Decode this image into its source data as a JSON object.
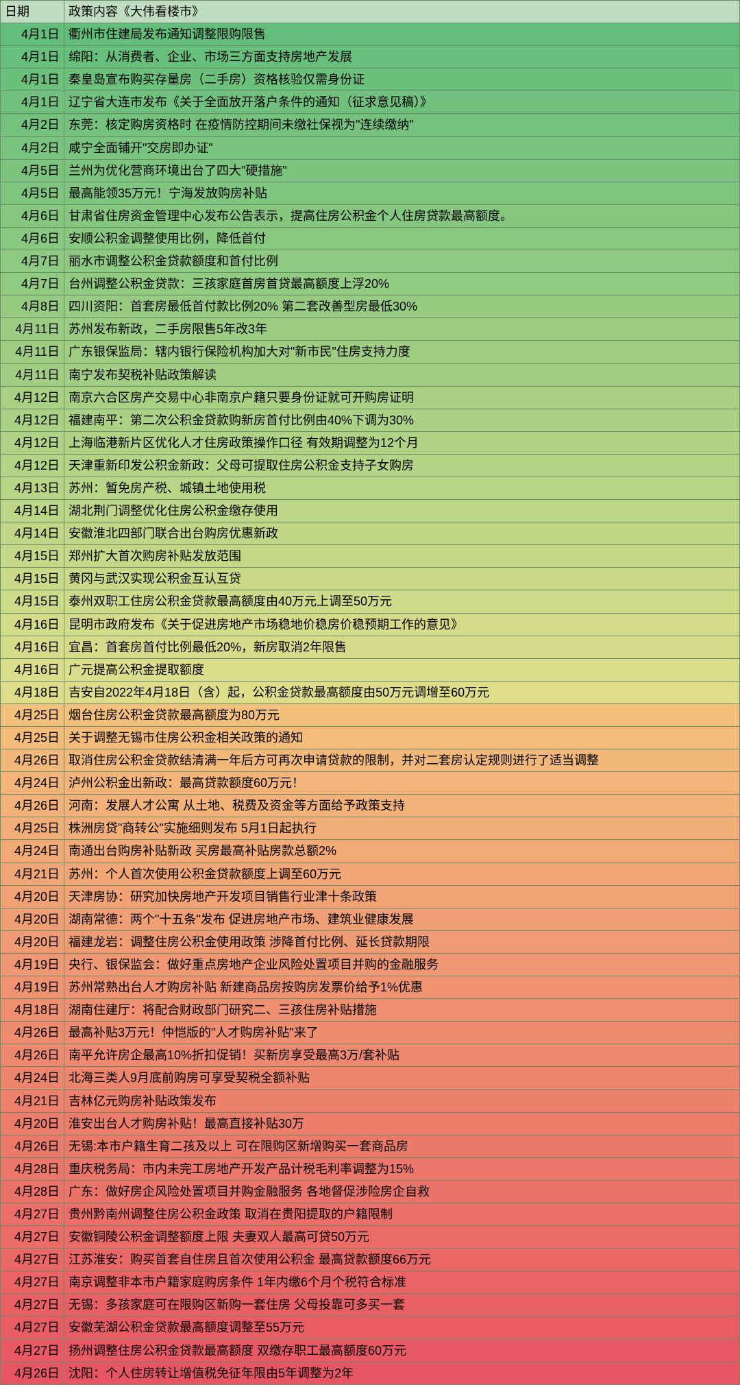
{
  "header": {
    "date": "日期",
    "content": "政策内容《大伟看楼市》"
  },
  "header_bg": "#c0dcc0",
  "border_color": "#6a8a6a",
  "text_color": "#000000",
  "font_size": 18,
  "rows": [
    {
      "date": "4月1日",
      "content": "衢州市住建局发布通知调整限购限售",
      "bg": "#63be7b"
    },
    {
      "date": "4月1日",
      "content": "绵阳：从消费者、企业、市场三方面支持房地产发展",
      "bg": "#67bf7c"
    },
    {
      "date": "4月1日",
      "content": "秦皇岛宣布购买存量房（二手房）资格核验仅需身份证",
      "bg": "#6bc07c"
    },
    {
      "date": "4月1日",
      "content": "辽宁省大连市发布《关于全面放开落户条件的通知（征求意见稿）》",
      "bg": "#6fc17d"
    },
    {
      "date": "4月2日",
      "content": "东莞：核定购房资格时 在疫情防控期间未缴社保视为\"连续缴纳\"",
      "bg": "#74c27d"
    },
    {
      "date": "4月2日",
      "content": "咸宁全面铺开\"交房即办证\"",
      "bg": "#78c37e"
    },
    {
      "date": "4月5日",
      "content": "兰州为优化营商环境出台了四大\"硬措施\"",
      "bg": "#7cc47e"
    },
    {
      "date": "4月5日",
      "content": "最高能领35万元！宁海发放购房补贴",
      "bg": "#80c57f"
    },
    {
      "date": "4月6日",
      "content": "甘肃省住房资金管理中心发布公告表示，提高住房公积金个人住房贷款最高额度。",
      "bg": "#85c77f"
    },
    {
      "date": "4月6日",
      "content": "安顺公积金调整使用比例，降低首付",
      "bg": "#89c880"
    },
    {
      "date": "4月7日",
      "content": "丽水市调整公积金贷款额度和首付比例",
      "bg": "#8dc980"
    },
    {
      "date": "4月7日",
      "content": "台州调整公积金贷款：三孩家庭首房首贷最高额度上浮20%",
      "bg": "#91ca81"
    },
    {
      "date": "4月8日",
      "content": "四川资阳：首套房最低首付款比例20% 第二套改善型房最低30%",
      "bg": "#96cb81"
    },
    {
      "date": "4月11日",
      "content": "苏州发布新政，二手房限售5年改3年",
      "bg": "#9acc82"
    },
    {
      "date": "4月11日",
      "content": "广东银保监局：辖内银行保险机构加大对\"新市民\"住房支持力度",
      "bg": "#9ecd82"
    },
    {
      "date": "4月11日",
      "content": "南宁发布契税补贴政策解读",
      "bg": "#a2ce83"
    },
    {
      "date": "4月12日",
      "content": "南京六合区房产交易中心非南京户籍只要身份证就可开购房证明",
      "bg": "#a7d083"
    },
    {
      "date": "4月12日",
      "content": "福建南平：第二次公积金贷款购新房首付比例由40%下调为30%",
      "bg": "#abd184"
    },
    {
      "date": "4月12日",
      "content": "上海临港新片区优化人才住房政策操作口径 有效期调整为12个月",
      "bg": "#afd284"
    },
    {
      "date": "4月12日",
      "content": "天津重新印发公积金新政：父母可提取住房公积金支持子女购房",
      "bg": "#b3d385"
    },
    {
      "date": "4月13日",
      "content": "苏州：暂免房产税、城镇土地使用税",
      "bg": "#b8d485"
    },
    {
      "date": "4月14日",
      "content": "湖北荆门调整优化住房公积金缴存使用",
      "bg": "#bcd586"
    },
    {
      "date": "4月14日",
      "content": "安徽淮北四部门联合出台购房优惠新政",
      "bg": "#c0d686"
    },
    {
      "date": "4月15日",
      "content": "郑州扩大首次购房补贴发放范围",
      "bg": "#c4d887"
    },
    {
      "date": "4月15日",
      "content": "黄冈与武汉实现公积金互认互贷",
      "bg": "#c9d987"
    },
    {
      "date": "4月15日",
      "content": "泰州双职工住房公积金贷款最高额度由40万元上调至50万元",
      "bg": "#cdda88"
    },
    {
      "date": "4月16日",
      "content": "昆明市政府发布《关于促进房地产市场稳地价稳房价稳预期工作的意见》",
      "bg": "#d1db88"
    },
    {
      "date": "4月16日",
      "content": "宜昌：首套房首付比例最低20%，新房取消2年限售",
      "bg": "#d5dc89"
    },
    {
      "date": "4月16日",
      "content": "广元提高公积金提取额度",
      "bg": "#dadd89"
    },
    {
      "date": "4月18日",
      "content": "吉安自2022年4月18日（含）起，公积金贷款最高额度由50万元调增至60万元",
      "bg": "#dede8a"
    },
    {
      "date": "4月25日",
      "content": "烟台住房公积金贷款最高额度为80万元",
      "bg": "#f3c07c"
    },
    {
      "date": "4月25日",
      "content": "关于调整无锡市住房公积金相关政策的通知",
      "bg": "#f3bc7b"
    },
    {
      "date": "4月26日",
      "content": "取消住房公积金贷款结清满一年后方可再次申请贷款的限制，并对二套房认定规则进行了适当调整",
      "bg": "#f2b87a"
    },
    {
      "date": "4月24日",
      "content": "泸州公积金出新政：最高贷款额度60万元！",
      "bg": "#f2b479"
    },
    {
      "date": "4月26日",
      "content": "河南：发展人才公寓 从土地、税费及资金等方面给予政策支持",
      "bg": "#f2b178"
    },
    {
      "date": "4月25日",
      "content": "株洲房贷\"商转公\"实施细则发布 5月1日起执行",
      "bg": "#f1ad77"
    },
    {
      "date": "4月24日",
      "content": "南通出台购房补贴新政 买房最高补贴房款总额2%",
      "bg": "#f1a976"
    },
    {
      "date": "4月21日",
      "content": "苏州：个人首次使用公积金贷款额度上调至60万元",
      "bg": "#f1a675"
    },
    {
      "date": "4月20日",
      "content": "天津房协：研究加快房地产开发项目销售行业津十条政策",
      "bg": "#f0a274"
    },
    {
      "date": "4月20日",
      "content": "湖南常德：两个\"十五条\"发布 促进房地产市场、建筑业健康发展",
      "bg": "#f09e73"
    },
    {
      "date": "4月20日",
      "content": "福建龙岩：调整住房公积金使用政策 涉降首付比例、延长贷款期限",
      "bg": "#ef9b73"
    },
    {
      "date": "4月19日",
      "content": "央行、银保监会：做好重点房地产企业风险处置项目并购的金融服务",
      "bg": "#ef9772"
    },
    {
      "date": "4月19日",
      "content": "苏州常熟出台人才购房补贴 新建商品房按购房发票价给予1%优惠",
      "bg": "#ef9371"
    },
    {
      "date": "4月18日",
      "content": "湖南住建厅：将配合财政部门研究二、三孩住房补贴措施",
      "bg": "#ee9070"
    },
    {
      "date": "4月26日",
      "content": "最高补贴3万元！仲恺版的\"人才购房补贴\"来了",
      "bg": "#ee8c6f"
    },
    {
      "date": "4月26日",
      "content": "南平允许房企最高10%折扣促销！买新房享受最高3万/套补贴",
      "bg": "#ee886e"
    },
    {
      "date": "4月24日",
      "content": "北海三类人9月底前购房可享受契税全额补贴",
      "bg": "#ed856d"
    },
    {
      "date": "4月21日",
      "content": "吉林亿元购房补贴政策发布",
      "bg": "#ed816c"
    },
    {
      "date": "4月20日",
      "content": "淮安出台人才购房补贴！最高直接补贴30万",
      "bg": "#ec7d6b"
    },
    {
      "date": "4月26日",
      "content": "无锡:本市户籍生育二孩及以上 可在限购区新增购买一套商品房",
      "bg": "#ec7a6b"
    },
    {
      "date": "4月28日",
      "content": "重庆税务局：市内未完工房地产开发产品计税毛利率调整为15%",
      "bg": "#ec766a"
    },
    {
      "date": "4月28日",
      "content": "广东：做好房企风险处置项目并购金融服务 各地督促涉险房企自救",
      "bg": "#eb7269"
    },
    {
      "date": "4月27日",
      "content": "贵州黔南州调整住房公积金政策 取消在贵阳提取的户籍限制",
      "bg": "#eb6f68"
    },
    {
      "date": "4月27日",
      "content": "安徽铜陵公积金调整额度上限 夫妻双人最高可贷50万元",
      "bg": "#eb6b67"
    },
    {
      "date": "4月27日",
      "content": "江苏淮安：购买首套自住房且首次使用公积金 最高贷款额度66万元",
      "bg": "#ea6766"
    },
    {
      "date": "4月27日",
      "content": "南京调整非本市户籍家庭购房条件 1年内缴6个月个税符合标准",
      "bg": "#ea6465"
    },
    {
      "date": "4月27日",
      "content": "无锡：多孩家庭可在限购区新购一套住房 父母投靠可多买一套",
      "bg": "#e96064"
    },
    {
      "date": "4月27日",
      "content": "安徽芜湖公积金贷款最高额度调整至55万元",
      "bg": "#e95c63"
    },
    {
      "date": "4月27日",
      "content": "扬州调整住房公积金贷款最高额度 双缴存职工最高额度60万元",
      "bg": "#e95963"
    },
    {
      "date": "4月26日",
      "content": "沈阳：个人住房转让增值税免征年限由5年调整为2年",
      "bg": "#e85562"
    }
  ]
}
